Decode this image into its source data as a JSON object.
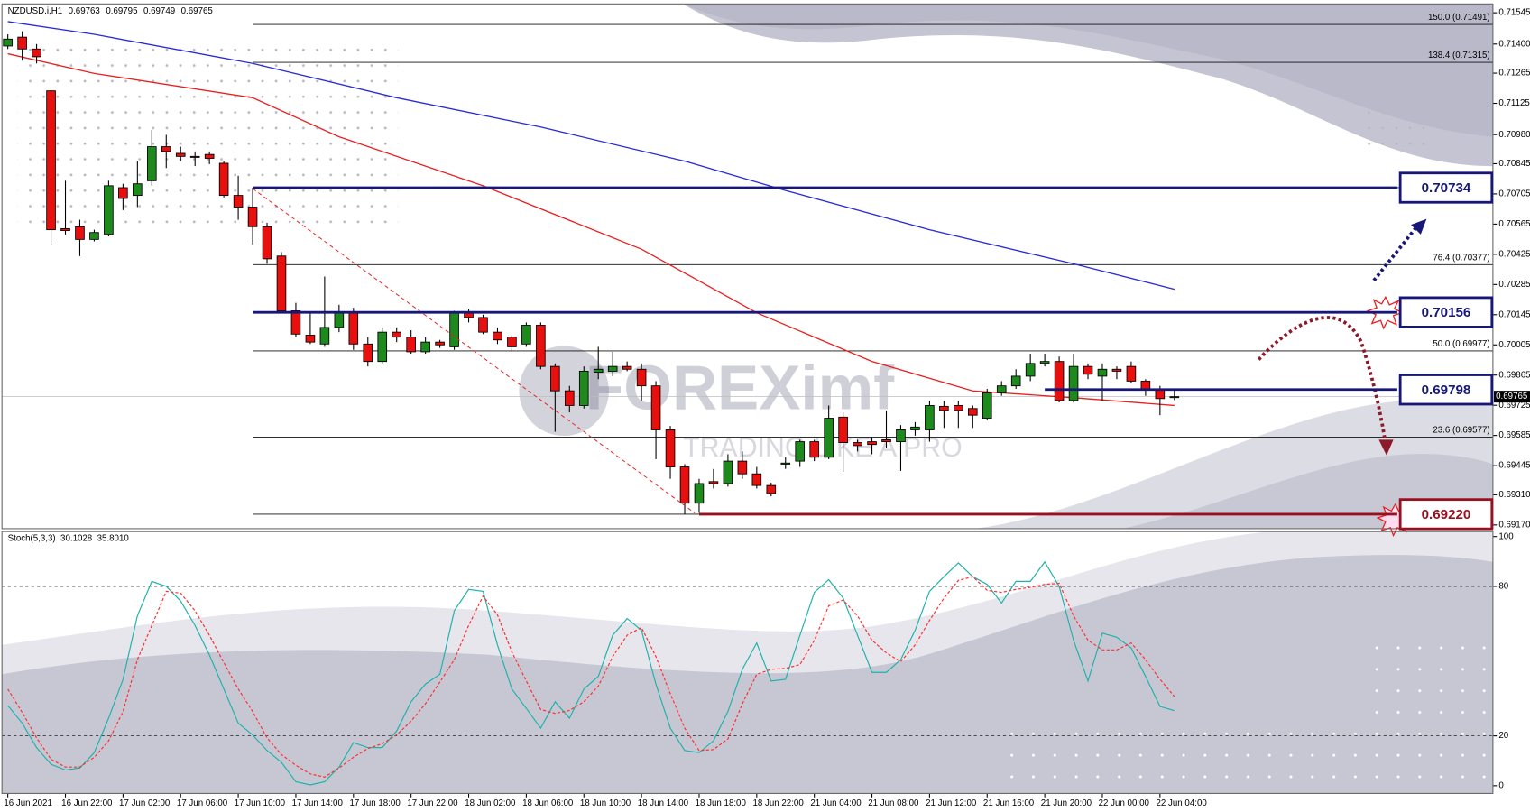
{
  "chart_data": [
    {
      "type": "candlestick",
      "title": "NZDUSD.i,H1",
      "quote": [
        0.69763,
        0.69795,
        0.69749,
        0.69765
      ],
      "watermark": {
        "brand": "FOREXimf",
        "tagline": "TRADING LIKE A PRO"
      },
      "bull_color": "#1e8a1e",
      "bear_color": "#e8100f",
      "categories": [
        "16 Jun 2021",
        null,
        null,
        null,
        "16 Jun 22:00",
        null,
        null,
        null,
        "17 Jun 02:00",
        null,
        null,
        null,
        "17 Jun 06:00",
        null,
        null,
        null,
        "17 Jun 10:00",
        null,
        null,
        null,
        "17 Jun 14:00",
        null,
        null,
        null,
        "17 Jun 18:00",
        null,
        null,
        null,
        "17 Jun 22:00",
        null,
        null,
        null,
        "18 Jun 02:00",
        null,
        null,
        null,
        "18 Jun 06:00",
        null,
        null,
        null,
        "18 Jun 10:00",
        null,
        null,
        null,
        "18 Jun 14:00",
        null,
        null,
        null,
        "18 Jun 18:00",
        null,
        null,
        null,
        "18 Jun 22:00",
        null,
        null,
        null,
        "21 Jun 04:00",
        null,
        null,
        null,
        "21 Jun 08:00",
        null,
        null,
        null,
        "21 Jun 12:00",
        null,
        null,
        null,
        "21 Jun 16:00",
        null,
        null,
        null,
        "21 Jun 20:00",
        null,
        null,
        null,
        "22 Jun 00:00",
        null,
        null,
        null,
        "22 Jun 04:00",
        null
      ],
      "open": [
        0.71391,
        0.71432,
        0.71377,
        0.71183,
        0.70544,
        0.70553,
        0.70494,
        0.70517,
        0.70734,
        0.70698,
        0.70766,
        0.70924,
        0.70893,
        0.70879,
        0.70888,
        0.70847,
        0.70698,
        0.70644,
        0.70553,
        0.70417,
        0.70163,
        0.7005,
        0.70009,
        0.70086,
        0.70154,
        0.70009,
        0.69928,
        0.70064,
        0.70041,
        0.69973,
        0.70018,
        0.69996,
        0.70154,
        0.70132,
        0.70064,
        0.70041,
        0.70009,
        0.70096,
        0.69905,
        0.69792,
        0.69724,
        0.69878,
        0.69883,
        0.69905,
        0.69892,
        0.69815,
        0.69611,
        0.69439,
        0.69271,
        0.69371,
        0.69362,
        0.69466,
        0.69407,
        0.69353,
        0.69452,
        0.69466,
        0.69556,
        0.69484,
        0.6967,
        0.69552,
        0.69556,
        0.69565,
        0.69556,
        0.69611,
        0.69611,
        0.6972,
        0.69724,
        0.6971,
        0.69665,
        0.69783,
        0.69815,
        0.6986,
        0.69919,
        0.69928,
        0.69747,
        0.69905,
        0.6986,
        0.69892,
        0.69905,
        0.69837,
        0.69801,
        0.69763
      ],
      "high": [
        0.71445,
        0.71459,
        0.714,
        0.71183,
        0.70766,
        0.70585,
        0.70539,
        0.70766,
        0.70752,
        0.70857,
        0.71002,
        0.70979,
        0.70924,
        0.70902,
        0.70902,
        0.70857,
        0.70789,
        0.70734,
        0.70571,
        0.70435,
        0.702,
        0.70154,
        0.70322,
        0.70191,
        0.70177,
        0.70041,
        0.70086,
        0.70086,
        0.70073,
        0.70041,
        0.70028,
        0.70163,
        0.70173,
        0.70145,
        0.70086,
        0.7005,
        0.70109,
        0.70109,
        0.69919,
        0.69815,
        0.69905,
        0.69996,
        0.69973,
        0.69928,
        0.69919,
        0.69837,
        0.69629,
        0.69452,
        0.69384,
        0.6943,
        0.69498,
        0.69511,
        0.69439,
        0.69366,
        0.69484,
        0.69565,
        0.69565,
        0.69724,
        0.69692,
        0.69565,
        0.69575,
        0.69701,
        0.69633,
        0.69647,
        0.69747,
        0.69747,
        0.69747,
        0.69724,
        0.69801,
        0.69837,
        0.69892,
        0.69964,
        0.69964,
        0.69951,
        0.69964,
        0.69919,
        0.69919,
        0.69905,
        0.69928,
        0.69846,
        0.69815,
        0.69795
      ],
      "low": [
        0.71377,
        0.71323,
        0.7131,
        0.70471,
        0.70517,
        0.70417,
        0.70485,
        0.70508,
        0.7063,
        0.70644,
        0.70743,
        0.70825,
        0.70857,
        0.70834,
        0.70843,
        0.70689,
        0.70585,
        0.70471,
        0.70381,
        0.70154,
        0.70041,
        0.70009,
        0.69996,
        0.70064,
        0.69982,
        0.69905,
        0.69919,
        0.70018,
        0.69964,
        0.69964,
        0.69991,
        0.69982,
        0.70109,
        0.70055,
        0.70009,
        0.69973,
        0.69996,
        0.69892,
        0.69602,
        0.69692,
        0.6971,
        0.69846,
        0.6986,
        0.69883,
        0.69747,
        0.69475,
        0.69384,
        0.6922,
        0.69226,
        0.69339,
        0.69348,
        0.69384,
        0.69339,
        0.69303,
        0.6943,
        0.69439,
        0.69466,
        0.69475,
        0.69416,
        0.69511,
        0.69498,
        0.69529,
        0.69421,
        0.69584,
        0.69556,
        0.6962,
        0.6962,
        0.6962,
        0.69656,
        0.69769,
        0.69801,
        0.69837,
        0.69905,
        0.69738,
        0.69738,
        0.69846,
        0.69747,
        0.69846,
        0.69828,
        0.69769,
        0.69679,
        0.69749
      ],
      "close": [
        0.71423,
        0.71377,
        0.71341,
        0.70539,
        0.70535,
        0.70494,
        0.70526,
        0.70743,
        0.70684,
        0.70752,
        0.70924,
        0.70902,
        0.70879,
        0.70875,
        0.7087,
        0.70698,
        0.70644,
        0.70553,
        0.70404,
        0.70163,
        0.70055,
        0.70018,
        0.70086,
        0.70154,
        0.70009,
        0.69928,
        0.70064,
        0.70041,
        0.69973,
        0.70018,
        0.70005,
        0.70154,
        0.70132,
        0.70064,
        0.70028,
        0.69996,
        0.70096,
        0.69905,
        0.69792,
        0.69724,
        0.69883,
        0.69892,
        0.69905,
        0.69892,
        0.69815,
        0.69611,
        0.69439,
        0.69271,
        0.69362,
        0.69362,
        0.69466,
        0.69407,
        0.69353,
        0.69316,
        0.69457,
        0.69556,
        0.69484,
        0.69665,
        0.69552,
        0.69538,
        0.69543,
        0.69556,
        0.69611,
        0.69624,
        0.69724,
        0.69701,
        0.69701,
        0.69679,
        0.69783,
        0.69815,
        0.6986,
        0.69919,
        0.69928,
        0.69747,
        0.69905,
        0.69869,
        0.69892,
        0.69883,
        0.69837,
        0.69801,
        0.69756,
        0.69765
      ],
      "series": [
        {
          "color": "#2a2ad8",
          "x": [
            0,
            6,
            17,
            27,
            37,
            47,
            54,
            64,
            74,
            81
          ],
          "values": [
            0.71504,
            0.71445,
            0.7131,
            0.71151,
            0.71015,
            0.70857,
            0.70721,
            0.70539,
            0.70381,
            0.70263
          ]
        },
        {
          "color": "#e82020",
          "x": [
            0,
            6,
            17,
            23,
            33,
            44,
            52,
            60,
            67,
            74,
            81
          ],
          "values": [
            0.71355,
            0.71264,
            0.71151,
            0.7097,
            0.70743,
            0.70449,
            0.70154,
            0.69928,
            0.69792,
            0.6976,
            0.69724
          ]
        }
      ],
      "fibonacci": [
        {
          "label": "150.0 (0.71491)",
          "value": 0.71491
        },
        {
          "label": "138.4 (0.71315)",
          "value": 0.71315
        },
        {
          "value": 0.70734
        },
        {
          "label": "76.4 (0.70377)",
          "value": 0.70377
        },
        {
          "label": "50.0 (0.69977)",
          "value": 0.69977
        },
        {
          "label": "23.6 (0.69577)",
          "value": 0.69577
        },
        {
          "value": 0.6922
        }
      ],
      "key_levels": [
        {
          "value": 0.70734,
          "color": "#17177a"
        },
        {
          "value": 0.70156,
          "color": "#17177a"
        },
        {
          "value": 0.69798,
          "color": "#17177a"
        },
        {
          "value": {
            "value": 0.6922,
            "label": "0.69220"
          },
          "color": "#9a1020"
        }
      ],
      "ylim": [
        0.69153,
        0.71586
      ],
      "yticks": [
        0.71545,
        {
          "value": 0.714,
          "label": "0.71400"
        },
        0.71265,
        0.71125,
        {
          "value": 0.7098,
          "label": "0.70980"
        },
        0.70845,
        0.70705,
        0.70565,
        0.70425,
        0.70285,
        0.70145,
        0.70005,
        0.69865,
        0.69725,
        0.69585,
        0.69445,
        {
          "value": 0.6931,
          "label": "0.69310"
        },
        {
          "value": 0.6917,
          "label": "0.69170"
        }
      ]
    },
    {
      "type": "line",
      "title": "Stoch(5,3,3)",
      "readings": [
        30.1028,
        {
          "value": 35.801,
          "label": "35.8010"
        }
      ],
      "series": [
        {
          "color": "#20b2aa",
          "values": [
            32.2,
            25.1,
            15.3,
            8.6,
            6.3,
            7.1,
            13.3,
            27.1,
            42.7,
            68.2,
            82.0,
            80.0,
            74.1,
            64.3,
            52.5,
            38.8,
            25.1,
            20.4,
            14.1,
            9.4,
            1.6,
            0.3,
            1.6,
            7.5,
            17.3,
            15.3,
            15.3,
            22.0,
            33.7,
            40.8,
            44.7,
            70.2,
            78.8,
            78.0,
            56.5,
            38.8,
            31.0,
            23.1,
            33.7,
            27.1,
            38.8,
            43.9,
            60.4,
            67.1,
            62.4,
            40.8,
            23.1,
            14.1,
            13.3,
            18.0,
            29.8,
            46.7,
            57.3,
            42.0,
            42.7,
            60.4,
            77.6,
            82.7,
            75.3,
            60.4,
            45.5,
            45.5,
            50.6,
            62.4,
            78.0,
            83.9,
            89.4,
            83.9,
            80.8,
            73.3,
            82.0,
            82.0,
            89.8,
            80.0,
            58.4,
            42.0,
            61.2,
            59.6,
            55.3,
            43.9,
            31.8,
            30.1
          ]
        },
        {
          "color": "#ff3030",
          "dashed": true,
          "values": [
            38.8,
            29.4,
            19.2,
            10.6,
            7.5,
            7.5,
            11.4,
            18.0,
            29.8,
            50.6,
            64.3,
            78.0,
            77.3,
            70.2,
            60.4,
            49.4,
            38.8,
            29.8,
            19.2,
            12.5,
            8.2,
            4.7,
            3.5,
            7.1,
            11.4,
            14.9,
            16.9,
            20.4,
            25.9,
            32.9,
            41.6,
            50.6,
            64.3,
            76.1,
            68.6,
            53.7,
            42.0,
            30.6,
            29.0,
            30.2,
            33.7,
            40.0,
            51.8,
            60.4,
            63.5,
            51.8,
            36.9,
            23.1,
            14.1,
            14.5,
            18.8,
            32.9,
            44.7,
            46.7,
            47.1,
            48.6,
            58.4,
            72.2,
            74.5,
            68.2,
            58.4,
            53.3,
            49.8,
            56.5,
            66.3,
            75.3,
            82.4,
            83.9,
            78.4,
            77.6,
            78.8,
            79.6,
            80.8,
            81.2,
            68.2,
            58.4,
            54.5,
            54.5,
            57.3,
            50.6,
            42.7,
            35.8
          ]
        }
      ],
      "levels": [
        20,
        80
      ],
      "ylim": [
        -3.1,
        102
      ],
      "yticks": [
        0,
        20,
        80,
        100
      ]
    }
  ]
}
